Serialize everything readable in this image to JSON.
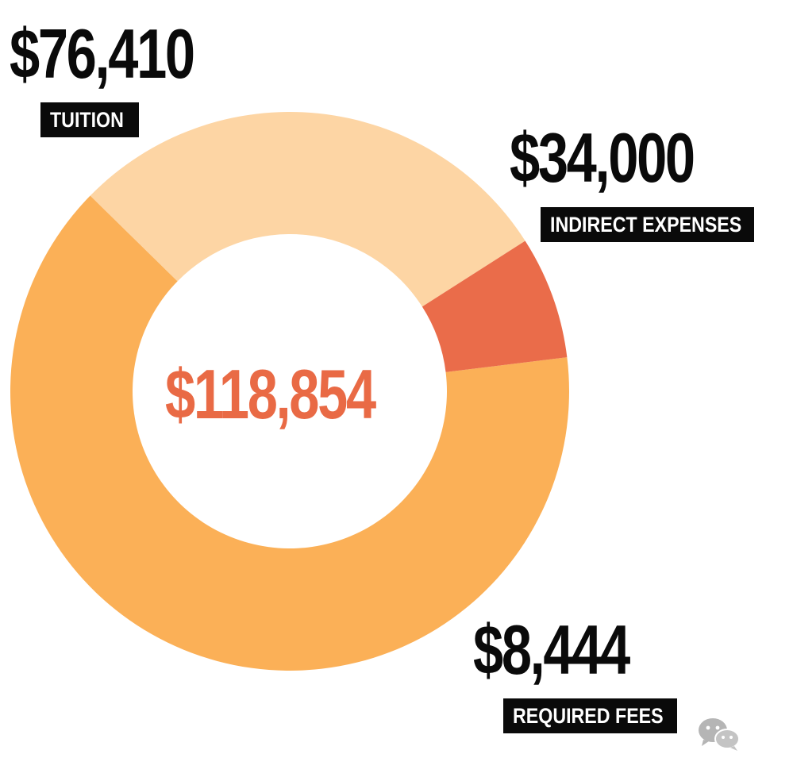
{
  "chart_data": {
    "type": "pie",
    "variant": "donut",
    "title": "",
    "center_label": "$118,854",
    "slices": [
      {
        "label": "TUITION",
        "value": 76410,
        "value_label": "$76,410",
        "color": "#fbb057"
      },
      {
        "label": "INDIRECT EXPENSES",
        "value": 34000,
        "value_label": "$34,000",
        "color": "#fdd5a4"
      },
      {
        "label": "REQUIRED FEES",
        "value": 8444,
        "value_label": "$8,444",
        "color": "#ea6c4a"
      }
    ],
    "total": 118854,
    "center_color": "#e96a45"
  },
  "watermark": {
    "icon": "wechat-icon",
    "color": "#b5b5b5"
  }
}
